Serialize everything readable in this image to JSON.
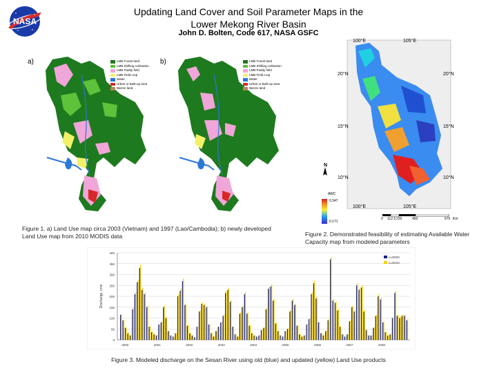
{
  "header": {
    "title_line1": "Updating Land Cover and Soil Parameter Maps in the",
    "title_line2": "Lower Mekong River Basin",
    "author": "John D. Bolten, Code 617, NASA GSFC",
    "logo_text": "NASA"
  },
  "figure1": {
    "label_a": "a)",
    "label_b": "b)",
    "legend_a": [
      {
        "label": "LMB Forest land",
        "color": "#1e7a1e"
      },
      {
        "label": "LMB Shifting cultivation",
        "color": "#5ec23a"
      },
      {
        "label": "LMB Paddy field",
        "color": "#f0a6d8"
      },
      {
        "label": "LMB Field crop",
        "color": "#f2f26a"
      },
      {
        "label": "Water",
        "color": "#2a78d8"
      },
      {
        "label": "Urban or Built-up area",
        "color": "#d62828"
      },
      {
        "label": "Barren land",
        "color": "#b08a5a"
      }
    ],
    "legend_b": [
      {
        "label": "LMB Forest land",
        "color": "#1e7a1e"
      },
      {
        "label": "LMB Shifting cultivation",
        "color": "#5ec23a"
      },
      {
        "label": "LMB Paddy field",
        "color": "#f0a6d8"
      },
      {
        "label": "LMB Field crop",
        "color": "#f2f26a"
      },
      {
        "label": "Water",
        "color": "#2a78d8"
      },
      {
        "label": "Urban or Built-up area",
        "color": "#d62828"
      },
      {
        "label": "Barren land",
        "color": "#b08a5a"
      }
    ],
    "caption": "Figure 1. a) Land Use map circa 2003 (Vietnam) and 1997 (Lao/Cambodia); b) newly developed Land Use map from 2010 MODIS data"
  },
  "figure2": {
    "lon_top_left": "100°E",
    "lon_top_right": "105°E",
    "lon_bottom_left": "100°E",
    "lon_bottom_right": "105°E",
    "lat_20": "20°N",
    "lat_15": "15°N",
    "lat_10": "10°N",
    "north": "N",
    "legend_title": "AWC",
    "legend_max": "0.347",
    "legend_min": "0.171",
    "scale_labels": [
      "0",
      "112.5",
      "225",
      "450",
      "675"
    ],
    "scale_unit": "Km",
    "caption": "Figure 2. Demonstrated feasibility of estimating Available Water Capacity map from modeled parameters"
  },
  "figure3": {
    "caption": "Figure 3. Modeled discharge on the Sesan River using old (blue) and updated (yellow) Land Use products"
  },
  "chart_data": {
    "type": "bar",
    "title": "",
    "xlabel": "",
    "ylabel": "Discharge, cms",
    "ylim": [
      0,
      400
    ],
    "yticks": [
      0,
      50,
      100,
      150,
      200,
      250,
      300,
      350,
      400
    ],
    "year_labels": [
      "2000",
      "2001",
      "2002",
      "2003",
      "2004",
      "2005",
      "2006",
      "2007",
      "2008"
    ],
    "legend": [
      {
        "name": "LU2003",
        "color": "#1a237e"
      },
      {
        "name": "LU2010",
        "color": "#f5d000"
      }
    ],
    "series": [
      {
        "name": "LU2003",
        "values": [
          115,
          90,
          55,
          30,
          20,
          140,
          210,
          265,
          330,
          230,
          210,
          150,
          60,
          35,
          25,
          20,
          70,
          80,
          150,
          100,
          40,
          20,
          15,
          30,
          200,
          225,
          270,
          160,
          65,
          30,
          20,
          12,
          60,
          130,
          165,
          160,
          150,
          70,
          30,
          15,
          40,
          60,
          80,
          110,
          215,
          230,
          175,
          60,
          25,
          15,
          120,
          150,
          210,
          120,
          65,
          30,
          20,
          15,
          20,
          45,
          55,
          140,
          235,
          245,
          180,
          75,
          40,
          20,
          15,
          40,
          50,
          130,
          180,
          160,
          65,
          25,
          15,
          20,
          70,
          95,
          210,
          260,
          190,
          80,
          30,
          20,
          40,
          90,
          370,
          180,
          170,
          135,
          60,
          25,
          15,
          25,
          85,
          150,
          130,
          250,
          230,
          240,
          130,
          45,
          20,
          20,
          55,
          110,
          200,
          185,
          80,
          35,
          20,
          25,
          100,
          215,
          110,
          100,
          110,
          110,
          90
        ]
      },
      {
        "name": "LU2010",
        "values": [
          118,
          92,
          58,
          33,
          22,
          148,
          218,
          275,
          345,
          240,
          218,
          157,
          63,
          38,
          27,
          22,
          73,
          84,
          158,
          104,
          42,
          21,
          16,
          32,
          210,
          235,
          282,
          166,
          68,
          32,
          21,
          13,
          63,
          135,
          172,
          166,
          156,
          73,
          32,
          16,
          42,
          63,
          83,
          115,
          225,
          240,
          182,
          63,
          27,
          16,
          125,
          157,
          220,
          126,
          68,
          32,
          21,
          16,
          21,
          47,
          58,
          146,
          245,
          255,
          188,
          78,
          42,
          21,
          16,
          42,
          52,
          136,
          188,
          166,
          68,
          27,
          16,
          21,
          73,
          99,
          218,
          270,
          198,
          84,
          32,
          21,
          42,
          94,
          380,
          188,
          176,
          141,
          63,
          27,
          16,
          27,
          89,
          157,
          136,
          260,
          240,
          250,
          136,
          47,
          21,
          21,
          58,
          115,
          210,
          193,
          84,
          37,
          21,
          27,
          104,
          225,
          115,
          104,
          115,
          115,
          94
        ]
      }
    ]
  }
}
